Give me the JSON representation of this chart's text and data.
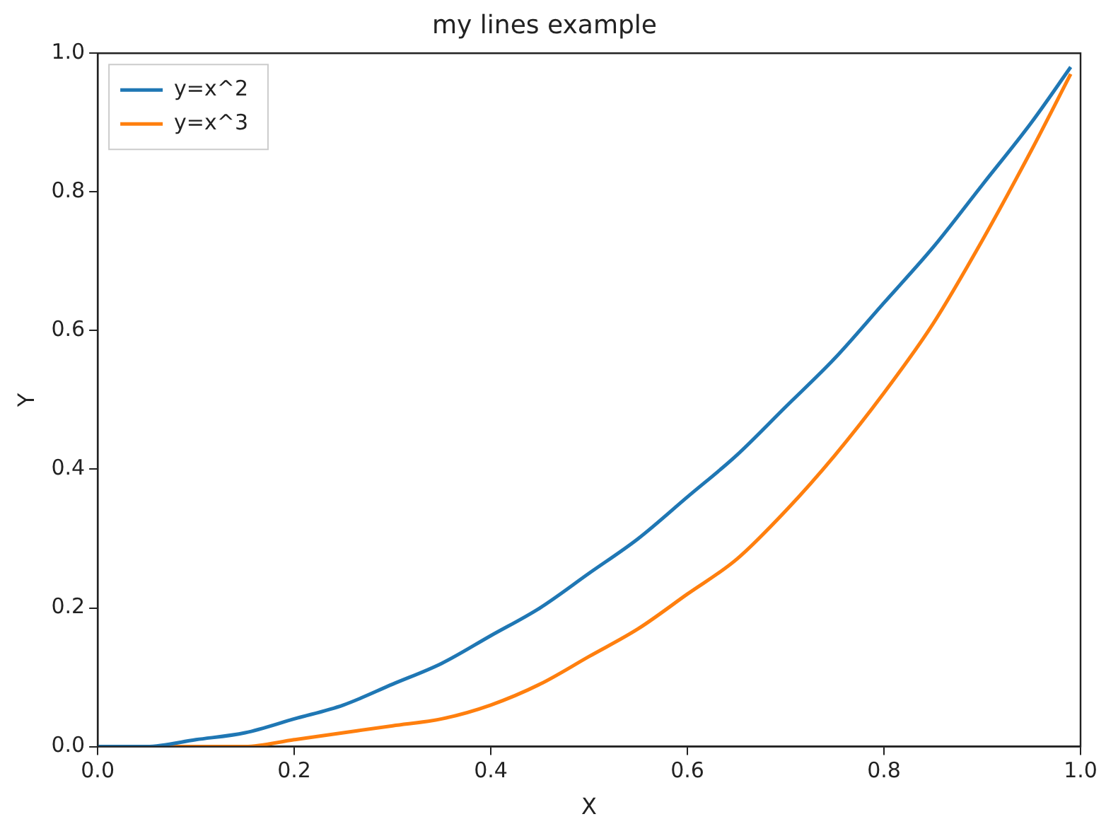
{
  "chart_data": {
    "type": "line",
    "title": "my lines example",
    "xlabel": "X",
    "ylabel": "Y",
    "x": [
      0,
      0.05,
      0.1,
      0.15,
      0.2,
      0.25,
      0.3,
      0.35,
      0.4,
      0.45,
      0.5,
      0.55,
      0.6,
      0.65,
      0.7,
      0.75,
      0.8,
      0.85,
      0.9,
      0.95,
      0.99
    ],
    "series": [
      {
        "name": "y=x^2",
        "color": "#1f77b4",
        "values": [
          0,
          0,
          0.01,
          0.02,
          0.04,
          0.06,
          0.09,
          0.12,
          0.16,
          0.2,
          0.25,
          0.3,
          0.36,
          0.42,
          0.49,
          0.56,
          0.64,
          0.72,
          0.81,
          0.9,
          0.98
        ]
      },
      {
        "name": "y=x^3",
        "color": "#ff7f0e",
        "values": [
          0,
          0,
          0,
          0,
          0.01,
          0.02,
          0.03,
          0.04,
          0.06,
          0.09,
          0.13,
          0.17,
          0.22,
          0.27,
          0.34,
          0.42,
          0.51,
          0.61,
          0.73,
          0.86,
          0.97
        ]
      }
    ],
    "xlim": [
      0,
      1
    ],
    "ylim": [
      0,
      1
    ],
    "xticks": [
      {
        "value": 0,
        "label": "0.0"
      },
      {
        "value": 0.2,
        "label": "0.2"
      },
      {
        "value": 0.4,
        "label": "0.4"
      },
      {
        "value": 0.6,
        "label": "0.6"
      },
      {
        "value": 0.8,
        "label": "0.8"
      },
      {
        "value": 1,
        "label": "1.0"
      }
    ],
    "yticks": [
      {
        "value": 0,
        "label": "0.0"
      },
      {
        "value": 0.2,
        "label": "0.2"
      },
      {
        "value": 0.4,
        "label": "0.4"
      },
      {
        "value": 0.6,
        "label": "0.6"
      },
      {
        "value": 0.8,
        "label": "0.8"
      },
      {
        "value": 1,
        "label": "1.0"
      }
    ],
    "grid": false,
    "legend": "top left",
    "marker": "none",
    "line_style": "solid"
  }
}
